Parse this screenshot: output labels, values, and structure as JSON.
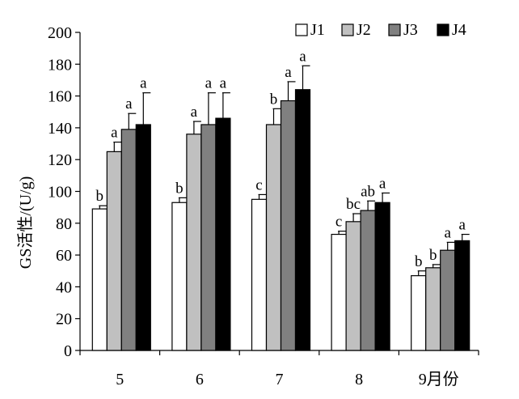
{
  "chart_data": {
    "type": "bar",
    "ylabel": "GS活性/(U/g)",
    "xlabel": "",
    "ylim": [
      0,
      200
    ],
    "yticks": [
      0,
      20,
      40,
      60,
      80,
      100,
      120,
      140,
      160,
      180,
      200
    ],
    "categories": [
      "5",
      "6",
      "7",
      "8",
      "9月份"
    ],
    "legend_position": "top-right",
    "grid": false,
    "series": [
      {
        "name": "J1",
        "color": "#ffffff",
        "values": [
          89,
          93,
          95,
          73,
          47
        ],
        "errors": [
          2,
          3,
          3,
          2,
          3
        ],
        "labels": [
          "b",
          "b",
          "c",
          "c",
          "b"
        ]
      },
      {
        "name": "J2",
        "color": "#c0c0c0",
        "values": [
          125,
          136,
          142,
          81,
          52
        ],
        "errors": [
          6,
          8,
          10,
          5,
          2
        ],
        "labels": [
          "a",
          "a",
          "b",
          "bc",
          "b"
        ]
      },
      {
        "name": "J3",
        "color": "#808080",
        "values": [
          139,
          142,
          157,
          88,
          63
        ],
        "errors": [
          10,
          20,
          12,
          6,
          5
        ],
        "labels": [
          "a",
          "a",
          "a",
          "ab",
          "a"
        ]
      },
      {
        "name": "J4",
        "color": "#000000",
        "values": [
          142,
          146,
          164,
          93,
          69
        ],
        "errors": [
          20,
          16,
          15,
          6,
          4
        ],
        "labels": [
          "a",
          "a",
          "a",
          "a",
          "a"
        ]
      }
    ]
  }
}
